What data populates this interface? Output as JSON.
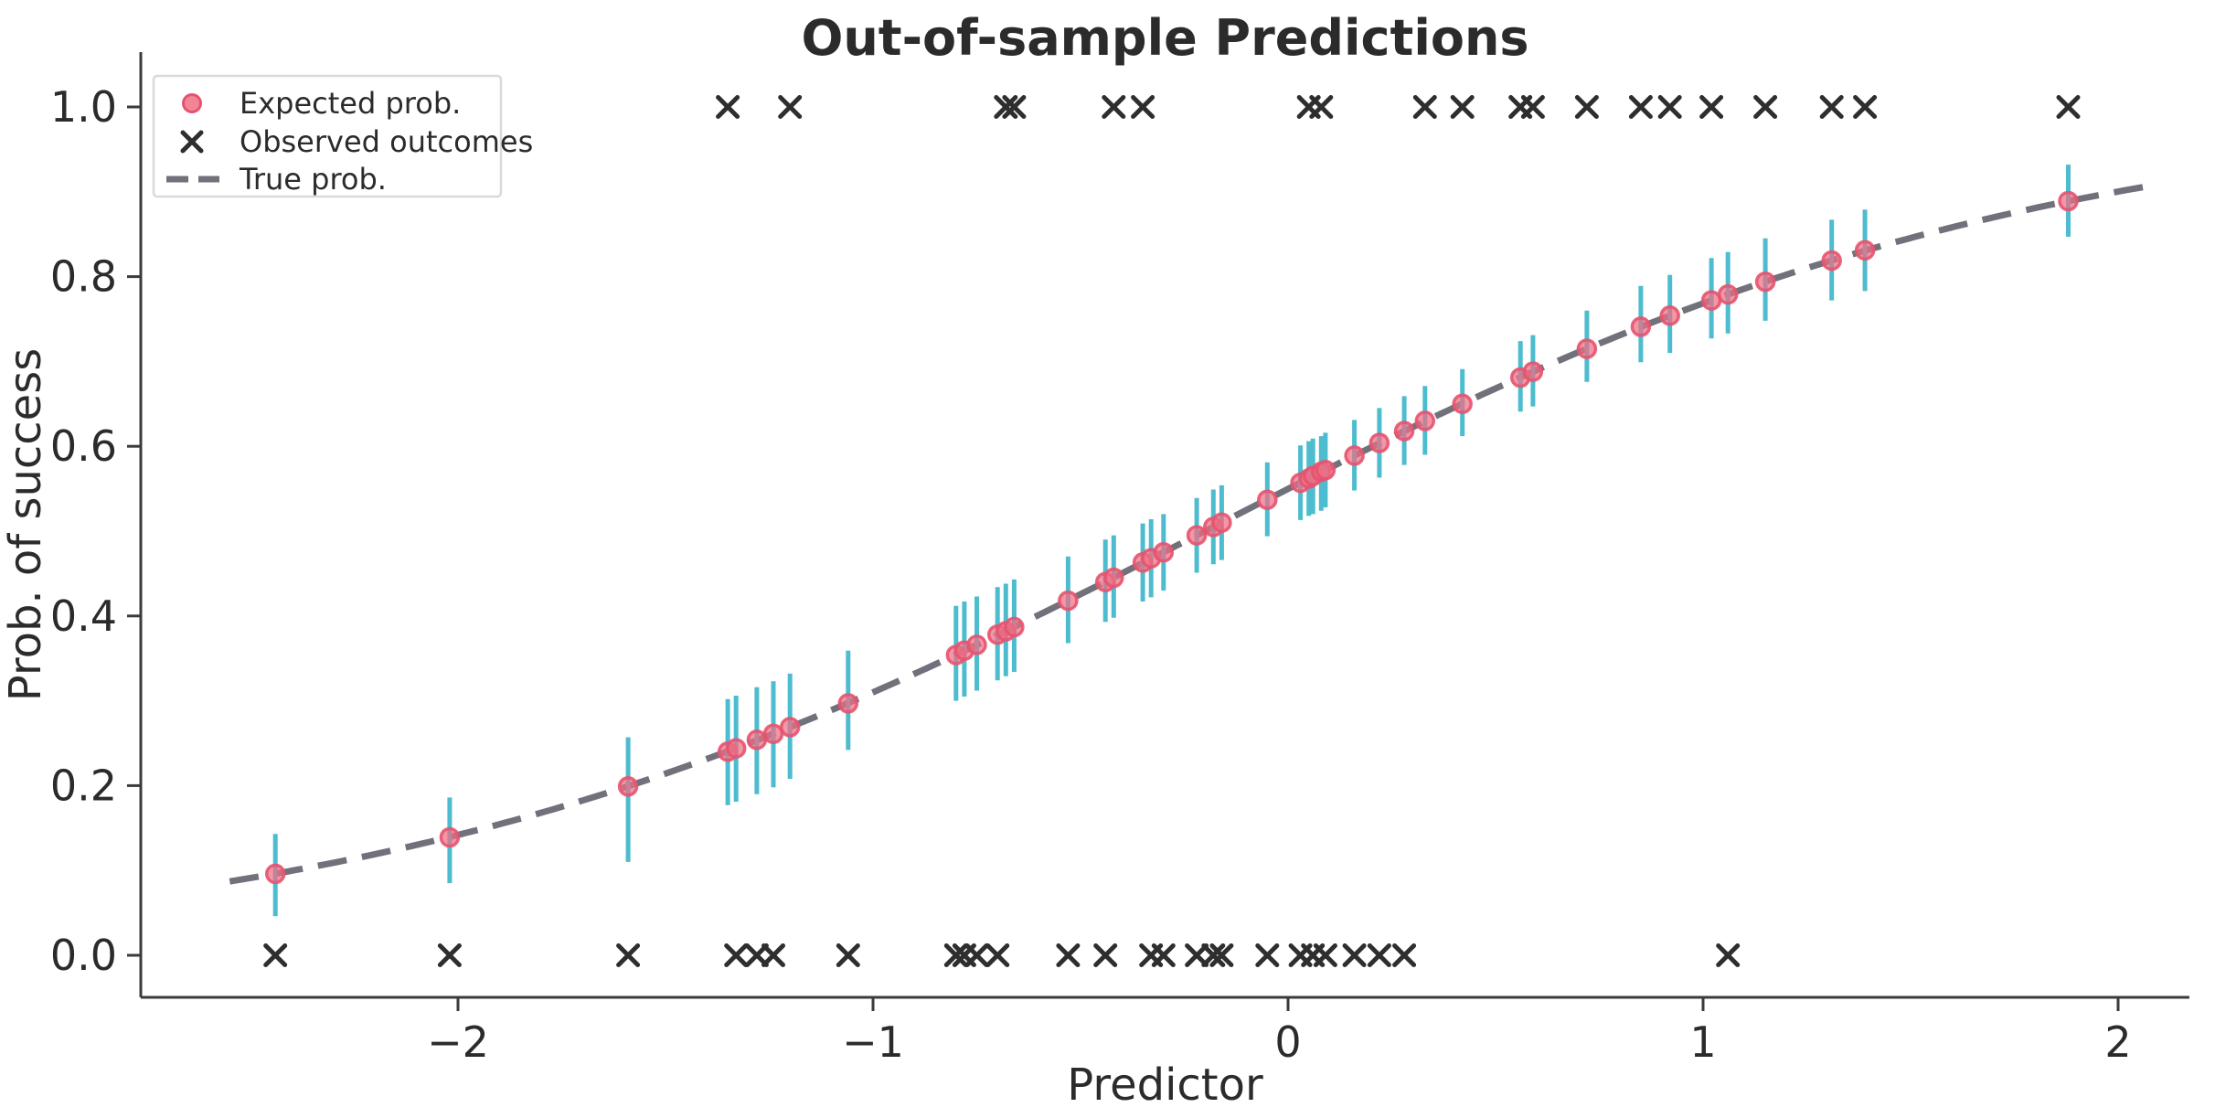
{
  "title": "Out-of-sample Predictions",
  "colors": {
    "background": "#FFFFFF",
    "expected_dot_fill": "#EE6E84",
    "expected_dot_edge": "#E6536F",
    "error_bar": "#4DBCCE",
    "observed_x": "#2E2E2E",
    "true_line": "#71717B",
    "axis": "#3B3B3B",
    "text": "#2B2B2B",
    "legend_border": "#D9D9D9"
  },
  "legend": {
    "items": [
      {
        "label": "Expected prob.",
        "marker": "dot"
      },
      {
        "label": "Observed outcomes",
        "marker": "cross"
      },
      {
        "label": "True prob.",
        "marker": "dash"
      }
    ]
  },
  "chart_data": {
    "type": "scatter",
    "title": "Out-of-sample Predictions",
    "xlabel": "Predictor",
    "ylabel": "Prob. of success",
    "xlim": [
      -2.76,
      2.17
    ],
    "ylim": [
      -0.05,
      1.06
    ],
    "grid": false,
    "legend_position": "upper left",
    "x_ticks": [
      -2,
      -1,
      0,
      1,
      2
    ],
    "x_tick_labels": [
      "−2",
      "−1",
      "0",
      "1",
      "2"
    ],
    "y_ticks": [
      0.0,
      0.2,
      0.4,
      0.6,
      0.8,
      1.0
    ],
    "y_tick_labels": [
      "0.0",
      "0.2",
      "0.4",
      "0.6",
      "0.8",
      "1.0"
    ],
    "series": [
      {
        "name": "Expected prob.",
        "type": "scatter",
        "marker": "circle-with-errorbar",
        "points": [
          {
            "x": -2.44,
            "p": 0.096,
            "lo": 0.046,
            "hi": 0.143
          },
          {
            "x": -2.02,
            "p": 0.139,
            "lo": 0.085,
            "hi": 0.186
          },
          {
            "x": -1.59,
            "p": 0.199,
            "lo": 0.11,
            "hi": 0.257
          },
          {
            "x": -1.35,
            "p": 0.24,
            "lo": 0.177,
            "hi": 0.302
          },
          {
            "x": -1.33,
            "p": 0.244,
            "lo": 0.181,
            "hi": 0.306
          },
          {
            "x": -1.28,
            "p": 0.254,
            "lo": 0.19,
            "hi": 0.316
          },
          {
            "x": -1.24,
            "p": 0.261,
            "lo": 0.198,
            "hi": 0.323
          },
          {
            "x": -1.2,
            "p": 0.269,
            "lo": 0.208,
            "hi": 0.332
          },
          {
            "x": -1.06,
            "p": 0.297,
            "lo": 0.242,
            "hi": 0.359
          },
          {
            "x": -0.8,
            "p": 0.354,
            "lo": 0.3,
            "hi": 0.412
          },
          {
            "x": -0.78,
            "p": 0.359,
            "lo": 0.305,
            "hi": 0.417
          },
          {
            "x": -0.75,
            "p": 0.366,
            "lo": 0.312,
            "hi": 0.423
          },
          {
            "x": -0.7,
            "p": 0.378,
            "lo": 0.324,
            "hi": 0.434
          },
          {
            "x": -0.68,
            "p": 0.382,
            "lo": 0.329,
            "hi": 0.438
          },
          {
            "x": -0.66,
            "p": 0.387,
            "lo": 0.334,
            "hi": 0.443
          },
          {
            "x": -0.53,
            "p": 0.418,
            "lo": 0.368,
            "hi": 0.47
          },
          {
            "x": -0.44,
            "p": 0.44,
            "lo": 0.393,
            "hi": 0.49
          },
          {
            "x": -0.42,
            "p": 0.445,
            "lo": 0.398,
            "hi": 0.495
          },
          {
            "x": -0.35,
            "p": 0.463,
            "lo": 0.417,
            "hi": 0.509
          },
          {
            "x": -0.33,
            "p": 0.468,
            "lo": 0.422,
            "hi": 0.514
          },
          {
            "x": -0.3,
            "p": 0.475,
            "lo": 0.43,
            "hi": 0.52
          },
          {
            "x": -0.22,
            "p": 0.495,
            "lo": 0.451,
            "hi": 0.539
          },
          {
            "x": -0.18,
            "p": 0.505,
            "lo": 0.461,
            "hi": 0.549
          },
          {
            "x": -0.16,
            "p": 0.51,
            "lo": 0.466,
            "hi": 0.554
          },
          {
            "x": -0.05,
            "p": 0.537,
            "lo": 0.494,
            "hi": 0.581
          },
          {
            "x": 0.03,
            "p": 0.557,
            "lo": 0.513,
            "hi": 0.601
          },
          {
            "x": 0.05,
            "p": 0.562,
            "lo": 0.518,
            "hi": 0.606
          },
          {
            "x": 0.06,
            "p": 0.565,
            "lo": 0.52,
            "hi": 0.609
          },
          {
            "x": 0.08,
            "p": 0.57,
            "lo": 0.524,
            "hi": 0.612
          },
          {
            "x": 0.09,
            "p": 0.572,
            "lo": 0.528,
            "hi": 0.616
          },
          {
            "x": 0.16,
            "p": 0.589,
            "lo": 0.548,
            "hi": 0.631
          },
          {
            "x": 0.22,
            "p": 0.604,
            "lo": 0.563,
            "hi": 0.645
          },
          {
            "x": 0.28,
            "p": 0.618,
            "lo": 0.578,
            "hi": 0.659
          },
          {
            "x": 0.33,
            "p": 0.63,
            "lo": 0.59,
            "hi": 0.671
          },
          {
            "x": 0.42,
            "p": 0.65,
            "lo": 0.612,
            "hi": 0.691
          },
          {
            "x": 0.56,
            "p": 0.681,
            "lo": 0.641,
            "hi": 0.724
          },
          {
            "x": 0.59,
            "p": 0.688,
            "lo": 0.647,
            "hi": 0.731
          },
          {
            "x": 0.72,
            "p": 0.715,
            "lo": 0.676,
            "hi": 0.76
          },
          {
            "x": 0.85,
            "p": 0.741,
            "lo": 0.699,
            "hi": 0.789
          },
          {
            "x": 0.92,
            "p": 0.754,
            "lo": 0.71,
            "hi": 0.802
          },
          {
            "x": 1.02,
            "p": 0.772,
            "lo": 0.727,
            "hi": 0.822
          },
          {
            "x": 1.06,
            "p": 0.779,
            "lo": 0.733,
            "hi": 0.829
          },
          {
            "x": 1.15,
            "p": 0.794,
            "lo": 0.748,
            "hi": 0.845
          },
          {
            "x": 1.31,
            "p": 0.819,
            "lo": 0.772,
            "hi": 0.867
          },
          {
            "x": 1.39,
            "p": 0.831,
            "lo": 0.783,
            "hi": 0.879
          },
          {
            "x": 1.88,
            "p": 0.889,
            "lo": 0.847,
            "hi": 0.932
          }
        ]
      },
      {
        "name": "Observed outcomes",
        "type": "scatter",
        "marker": "x",
        "successes_x": [
          -1.35,
          -1.2,
          -0.68,
          -0.66,
          -0.42,
          -0.35,
          0.05,
          0.08,
          0.33,
          0.42,
          0.56,
          0.59,
          0.72,
          0.85,
          0.92,
          1.02,
          1.15,
          1.31,
          1.39,
          1.88
        ],
        "failures_x": [
          -2.44,
          -2.02,
          -1.59,
          -1.33,
          -1.28,
          -1.24,
          -1.06,
          -0.8,
          -0.78,
          -0.75,
          -0.7,
          -0.53,
          -0.44,
          -0.33,
          -0.3,
          -0.22,
          -0.18,
          -0.16,
          -0.05,
          0.03,
          0.06,
          0.09,
          0.16,
          0.22,
          0.28,
          1.06
        ]
      },
      {
        "name": "True prob.",
        "type": "line",
        "style": "dashed",
        "model": "p = 1/(1+exp(-(intercept + slope*x)))",
        "params": {
          "intercept": 0.2,
          "slope": 1.0
        },
        "x_range": [
          -2.55,
          2.07
        ]
      }
    ]
  }
}
